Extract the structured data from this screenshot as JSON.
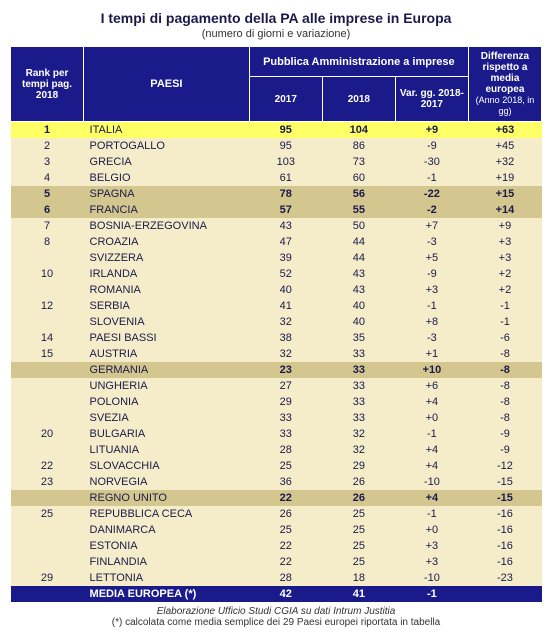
{
  "title": "I tempi di pagamento della PA alle imprese in Europa",
  "subtitle": "(numero di giorni e variazione)",
  "headers": {
    "rank": "Rank per tempi pag. 2018",
    "paesi": "PAESI",
    "pa_group": "Pubblica Amministrazione a imprese",
    "y2017": "2017",
    "y2018": "2018",
    "var": "Var. gg. 2018-2017",
    "diff": "Differenza rispetto a media europea",
    "diff_sub": "(Anno 2018, in gg)"
  },
  "rows": [
    {
      "rank": "1",
      "country": "ITALIA",
      "y17": "95",
      "y18": "104",
      "var": "+9",
      "diff": "+63",
      "style": "yellow"
    },
    {
      "rank": "2",
      "country": "PORTOGALLO",
      "y17": "95",
      "y18": "86",
      "var": "-9",
      "diff": "+45",
      "style": "cream"
    },
    {
      "rank": "3",
      "country": "GRECIA",
      "y17": "103",
      "y18": "73",
      "var": "-30",
      "diff": "+32",
      "style": "cream"
    },
    {
      "rank": "4",
      "country": "BELGIO",
      "y17": "61",
      "y18": "60",
      "var": "-1",
      "diff": "+19",
      "style": "cream"
    },
    {
      "rank": "5",
      "country": "SPAGNA",
      "y17": "78",
      "y18": "56",
      "var": "-22",
      "diff": "+15",
      "style": "tan"
    },
    {
      "rank": "6",
      "country": "FRANCIA",
      "y17": "57",
      "y18": "55",
      "var": "-2",
      "diff": "+14",
      "style": "tan"
    },
    {
      "rank": "7",
      "country": "BOSNIA-ERZEGOVINA",
      "y17": "43",
      "y18": "50",
      "var": "+7",
      "diff": "+9",
      "style": "cream"
    },
    {
      "rank": "8",
      "country": "CROAZIA",
      "y17": "47",
      "y18": "44",
      "var": "-3",
      "diff": "+3",
      "style": "cream"
    },
    {
      "rank": "",
      "country": "SVIZZERA",
      "y17": "39",
      "y18": "44",
      "var": "+5",
      "diff": "+3",
      "style": "cream"
    },
    {
      "rank": "10",
      "country": "IRLANDA",
      "y17": "52",
      "y18": "43",
      "var": "-9",
      "diff": "+2",
      "style": "cream"
    },
    {
      "rank": "",
      "country": "ROMANIA",
      "y17": "40",
      "y18": "43",
      "var": "+3",
      "diff": "+2",
      "style": "cream"
    },
    {
      "rank": "12",
      "country": "SERBIA",
      "y17": "41",
      "y18": "40",
      "var": "-1",
      "diff": "-1",
      "style": "cream"
    },
    {
      "rank": "",
      "country": "SLOVENIA",
      "y17": "32",
      "y18": "40",
      "var": "+8",
      "diff": "-1",
      "style": "cream"
    },
    {
      "rank": "14",
      "country": "PAESI BASSI",
      "y17": "38",
      "y18": "35",
      "var": "-3",
      "diff": "-6",
      "style": "cream"
    },
    {
      "rank": "15",
      "country": "AUSTRIA",
      "y17": "32",
      "y18": "33",
      "var": "+1",
      "diff": "-8",
      "style": "cream"
    },
    {
      "rank": "",
      "country": "GERMANIA",
      "y17": "23",
      "y18": "33",
      "var": "+10",
      "diff": "-8",
      "style": "tan"
    },
    {
      "rank": "",
      "country": "UNGHERIA",
      "y17": "27",
      "y18": "33",
      "var": "+6",
      "diff": "-8",
      "style": "cream"
    },
    {
      "rank": "",
      "country": "POLONIA",
      "y17": "29",
      "y18": "33",
      "var": "+4",
      "diff": "-8",
      "style": "cream"
    },
    {
      "rank": "",
      "country": "SVEZIA",
      "y17": "33",
      "y18": "33",
      "var": "+0",
      "diff": "-8",
      "style": "cream"
    },
    {
      "rank": "20",
      "country": "BULGARIA",
      "y17": "33",
      "y18": "32",
      "var": "-1",
      "diff": "-9",
      "style": "cream"
    },
    {
      "rank": "",
      "country": "LITUANIA",
      "y17": "28",
      "y18": "32",
      "var": "+4",
      "diff": "-9",
      "style": "cream"
    },
    {
      "rank": "22",
      "country": "SLOVACCHIA",
      "y17": "25",
      "y18": "29",
      "var": "+4",
      "diff": "-12",
      "style": "cream"
    },
    {
      "rank": "23",
      "country": "NORVEGIA",
      "y17": "36",
      "y18": "26",
      "var": "-10",
      "diff": "-15",
      "style": "cream"
    },
    {
      "rank": "",
      "country": "REGNO UNITO",
      "y17": "22",
      "y18": "26",
      "var": "+4",
      "diff": "-15",
      "style": "tan"
    },
    {
      "rank": "25",
      "country": "REPUBBLICA CECA",
      "y17": "26",
      "y18": "25",
      "var": "-1",
      "diff": "-16",
      "style": "cream"
    },
    {
      "rank": "",
      "country": "DANIMARCA",
      "y17": "25",
      "y18": "25",
      "var": "+0",
      "diff": "-16",
      "style": "cream"
    },
    {
      "rank": "",
      "country": "ESTONIA",
      "y17": "22",
      "y18": "25",
      "var": "+3",
      "diff": "-16",
      "style": "cream"
    },
    {
      "rank": "",
      "country": "FINLANDIA",
      "y17": "22",
      "y18": "25",
      "var": "+3",
      "diff": "-16",
      "style": "cream"
    },
    {
      "rank": "29",
      "country": "LETTONIA",
      "y17": "28",
      "y18": "18",
      "var": "-10",
      "diff": "-23",
      "style": "cream"
    },
    {
      "rank": "",
      "country": "MEDIA EUROPEA (*)",
      "y17": "42",
      "y18": "41",
      "var": "-1",
      "diff": "",
      "style": "blue"
    }
  ],
  "footer1": "Elaborazione Ufficio Studi CGIA su dati Intrum Justitia",
  "footer2": "(*) calcolata come media semplice dei 29 Paesi europei riportata in tabella"
}
